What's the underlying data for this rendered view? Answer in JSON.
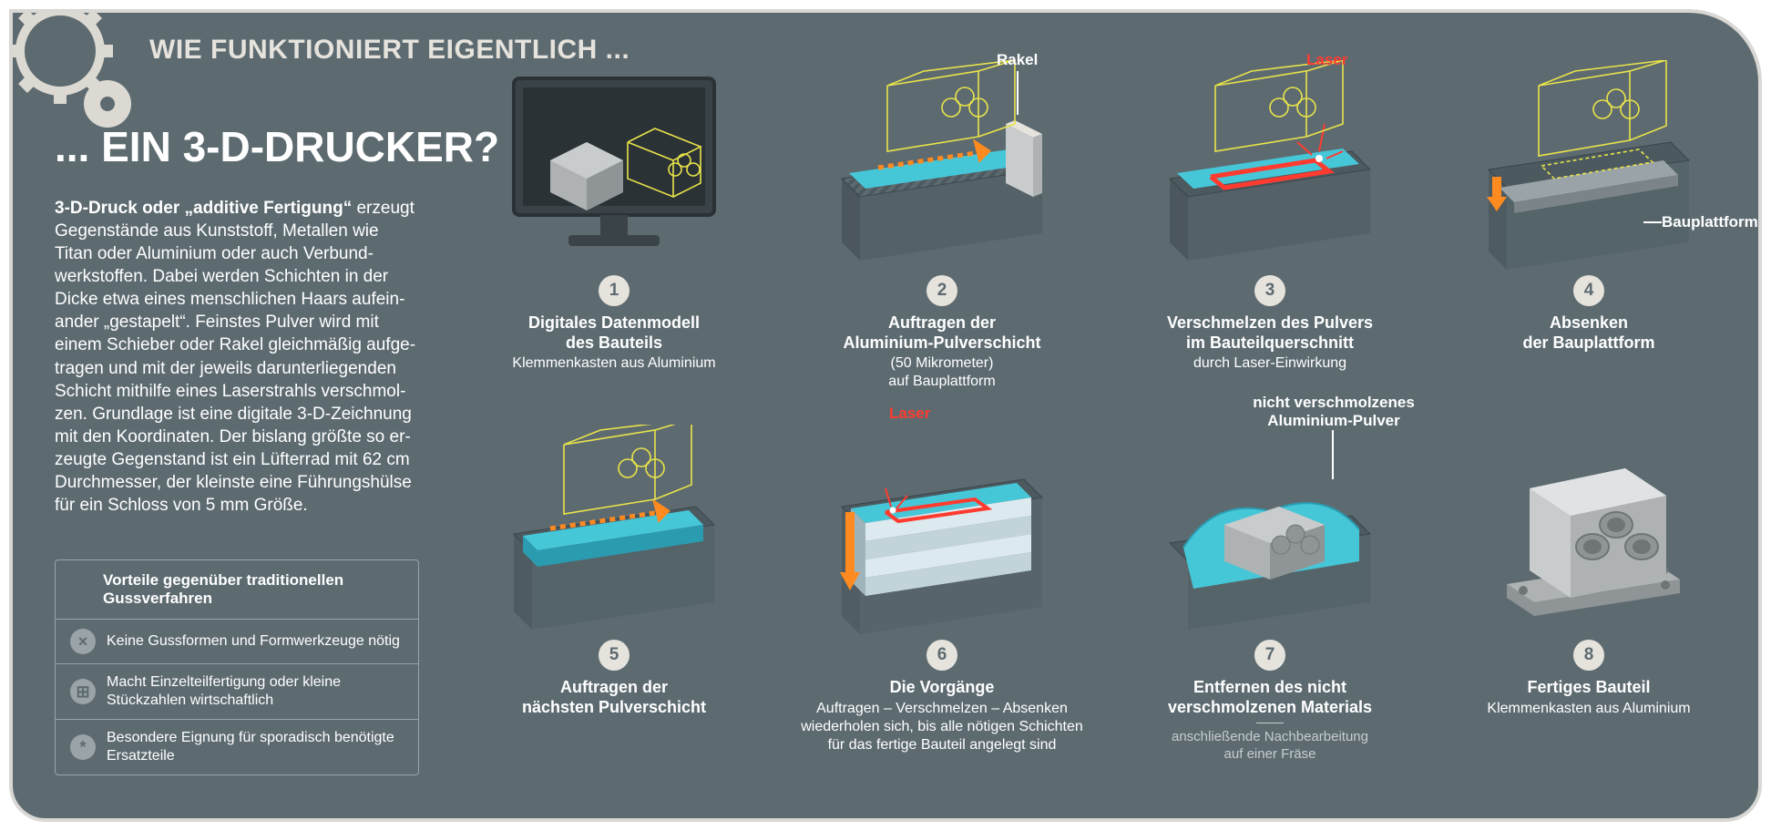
{
  "colors": {
    "bg": "#5d6b71",
    "frame_border": "#d9d8d4",
    "powder_surface": "#46c7d8",
    "powder_deep": "#2b9bb0",
    "wire": "#e9e34a",
    "arrow_orange": "#ff8a1f",
    "laser_red": "#ff3b2f",
    "badge_bg": "#e6e3dd",
    "badge_fg": "#5d6b71",
    "hatch": "#9aa3a7",
    "ice_white": "#dce9ee",
    "monitor_dark": "#3a4448",
    "monitor_darker": "#2a3236",
    "part_light": "#c9cccd",
    "part_mid": "#aeb2b3",
    "part_dark": "#8f9496"
  },
  "header": "WIE FUNKTIONIERT EIGENTLICH ...",
  "title": "... EIN 3-D-DRUCKER?",
  "body_html": "<b>3-D-Druck oder „additive Fertigung“</b> er­zeugt Gegenstände aus Kunststoff, Metallen wie Titan oder Aluminium oder auch Verbund­werkstoffen. Dabei werden Schichten in der Dicke etwa eines menschlichen Haars aufein­ander „gestapelt“. Feinstes Pulver wird mit einem Schieber oder Rakel gleichmäßig aufge­tragen und mit der jeweils darunterliegenden Schicht mithilfe eines Laserstrahls verschmol­zen. Grundlage ist eine digitale 3-D-Zeichnung mit den Koordinaten. Der bislang größte so er­zeugte Gegenstand ist ein Lüfterrad mit 62 cm Durchmesser, der kleinste eine Führungshülse für ein Schloss von 5 mm Größe.",
  "box": {
    "title": "Vorteile gegenüber traditionellen Gussverfahren",
    "items": [
      {
        "icon": "×",
        "text": "Keine Gussformen und Formwerkzeuge nötig"
      },
      {
        "icon": "⊞",
        "text": "Macht Einzelteilfertigung oder kleine Stückzahlen wirtschaftlich"
      },
      {
        "icon": "*",
        "text": "Besondere Eignung für sporadisch benötigte Ersatzteile"
      }
    ]
  },
  "steps": [
    {
      "n": "1",
      "bold": "Digitales Datenmodell\ndes Bauteils",
      "plain": "Klemmenkasten aus Aluminium"
    },
    {
      "n": "2",
      "bold": "Auftragen der\nAluminium-Pulverschicht",
      "plain": "(50 Mikrometer)\nauf Bauplattform",
      "annot": "Rakel"
    },
    {
      "n": "3",
      "bold": "Verschmelzen des Pulvers\nim Bauteilquerschnitt",
      "plain": "durch Laser-Einwirkung",
      "annot": "Laser"
    },
    {
      "n": "4",
      "bold": "Absenken\nder Bauplattform",
      "annot": "Bauplattform"
    },
    {
      "n": "5",
      "bold": "Auftragen der\nnächsten Pulverschicht"
    },
    {
      "n": "6",
      "bold": "Die Vorgänge",
      "plain": "Auftragen – Verschmelzen – Absenken\nwiederholen sich, bis alle nötigen Schichten\nfür das fertige Bauteil angelegt sind",
      "annot": "Laser"
    },
    {
      "n": "7",
      "bold": "Entfernen des nicht\nverschmolzenen Materials",
      "light": "anschließende Nachbearbeitung\nauf einer Fräse",
      "annot": "nicht verschmolzenes\nAluminium-Pulver"
    },
    {
      "n": "8",
      "bold": "Fertiges Bauteil",
      "plain": "Klemmenkasten aus Aluminium"
    }
  ]
}
